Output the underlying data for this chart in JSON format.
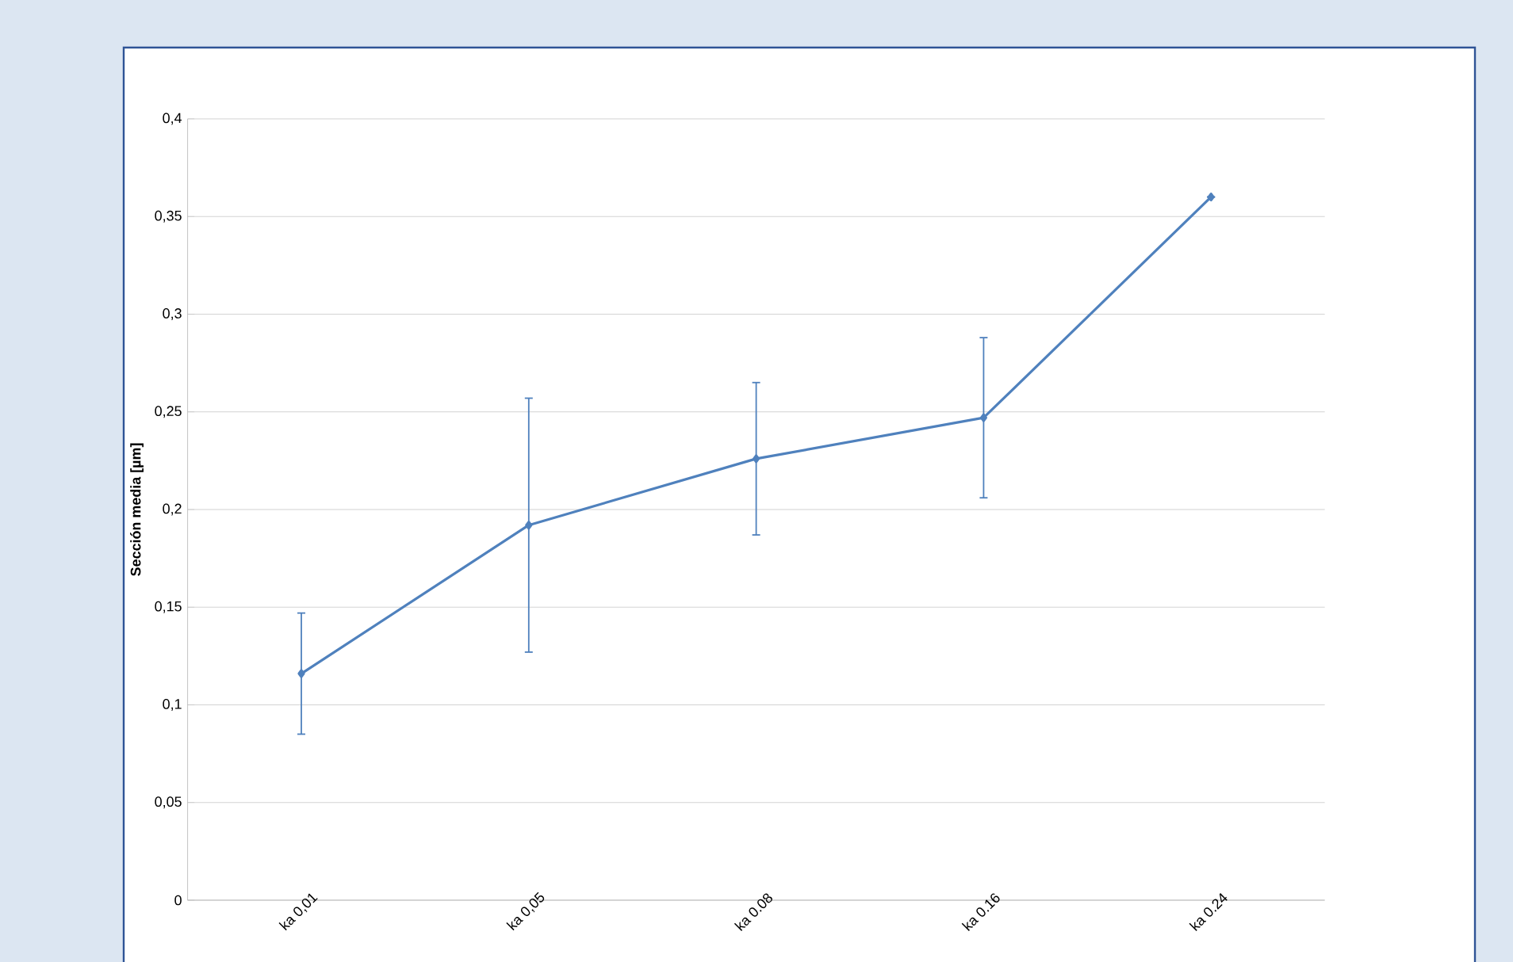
{
  "chart_data": {
    "type": "line",
    "ylabel": "Sección media [µm]",
    "categories": [
      "ka 0,01",
      "ka 0,05",
      "ka 0.08",
      "ka 0.16",
      "ka 0.24"
    ],
    "values": [
      0.116,
      0.192,
      0.226,
      0.247,
      0.36
    ],
    "errors": [
      0.031,
      0.065,
      0.039,
      0.041,
      null
    ],
    "color": "#4f81bd",
    "ylim": [
      0,
      0.4
    ],
    "yticks": [
      {
        "value": 0,
        "label": "0"
      },
      {
        "value": 0.05,
        "label": "0,05"
      },
      {
        "value": 0.1,
        "label": "0,1"
      },
      {
        "value": 0.15,
        "label": "0,15"
      },
      {
        "value": 0.2,
        "label": "0,2"
      },
      {
        "value": 0.25,
        "label": "0,25"
      },
      {
        "value": 0.3,
        "label": "0,3"
      },
      {
        "value": 0.35,
        "label": "0,35"
      },
      {
        "value": 0.4,
        "label": "0,4"
      }
    ],
    "grid": "y",
    "marker": "diamond",
    "line_style": "solid"
  }
}
